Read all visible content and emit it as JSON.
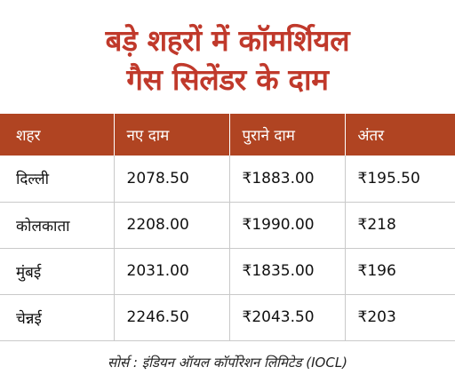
{
  "title": {
    "line1": "बड़े शहरों में कॉमर्शियल",
    "line2": "गैस सिलेंडर के दाम"
  },
  "table": {
    "headers": [
      "शहर",
      "नए दाम",
      "पुराने दाम",
      "अंतर"
    ],
    "rows": [
      [
        "दिल्ली",
        "2078.50",
        "₹1883.00",
        "₹195.50"
      ],
      [
        "कोलकाता",
        "2208.00",
        "₹1990.00",
        "₹218"
      ],
      [
        "मुंबई",
        "2031.00",
        "₹1835.00",
        "₹196"
      ],
      [
        "चेन्नई",
        "2246.50",
        "₹2043.50",
        "₹203"
      ]
    ]
  },
  "source": "सोर्स : इंडियन ऑयल कॉर्पोरेशन लिमिटेड (IOCL)",
  "colors": {
    "title": "#c0392b",
    "header_bg": "#b04422"
  }
}
